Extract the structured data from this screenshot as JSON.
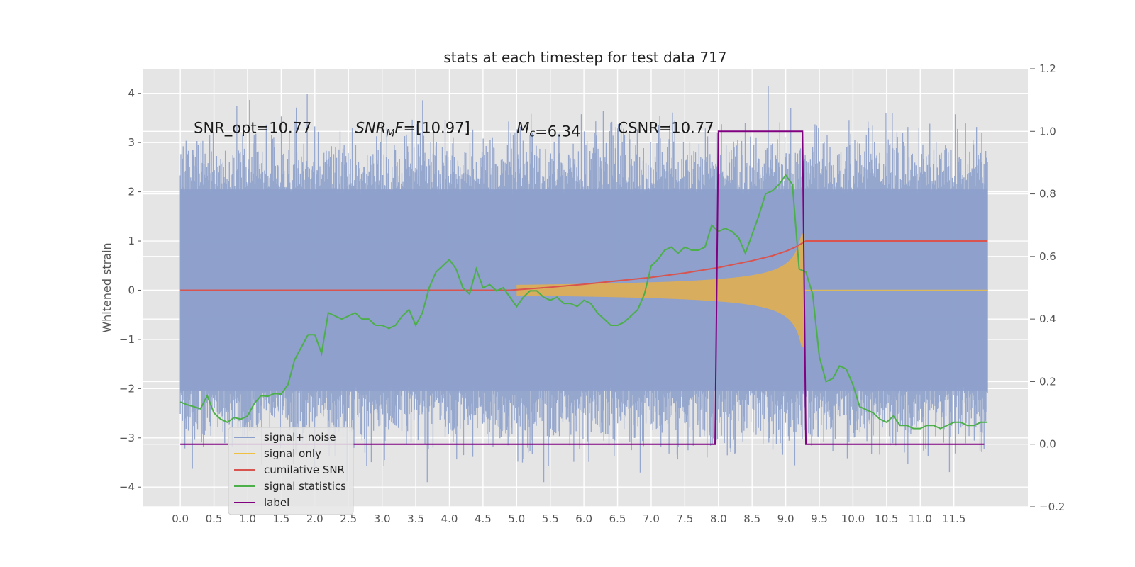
{
  "chart_data": {
    "type": "line",
    "title": "stats at each timestep for test data 717",
    "ylabel": "Whitened strain",
    "xlabel": "",
    "xlim": [
      -0.55,
      12.6
    ],
    "ylim": [
      -4.4,
      4.5
    ],
    "y2lim": [
      -0.2,
      1.2
    ],
    "grid": true,
    "legend_position": "lower-left",
    "x_ticks": [
      "0.0",
      "0.5",
      "1.0",
      "1.5",
      "2.0",
      "2.5",
      "3.0",
      "3.5",
      "4.0",
      "4.5",
      "5.0",
      "5.5",
      "6.0",
      "6.5",
      "7.0",
      "7.5",
      "8.0",
      "8.5",
      "9.0",
      "9.5",
      "10.0",
      "10.5",
      "11.0",
      "11.5"
    ],
    "y_ticks": [
      "−4",
      "−3",
      "−2",
      "−1",
      "0",
      "1",
      "2",
      "3",
      "4"
    ],
    "y2_ticks": [
      "−0.2",
      "0.0",
      "0.2",
      "0.4",
      "0.6",
      "0.8",
      "1.0",
      "1.2"
    ],
    "annotations": [
      {
        "text": "SNR_opt=10.77",
        "x": 0.2,
        "y": 3.3
      },
      {
        "text": "SNR_MF=[10.97]",
        "x": 2.6,
        "y": 3.3
      },
      {
        "text": "M_c=6.34",
        "x": 5.0,
        "y": 3.3
      },
      {
        "text": "CSNR=10.77",
        "x": 6.5,
        "y": 3.3
      }
    ],
    "series": [
      {
        "name": "signal+ noise",
        "color": "#8da0cb",
        "axis": "left",
        "kind": "noise",
        "x_start": 0.0,
        "x_end": 12.0,
        "envelope": 2.3
      },
      {
        "name": "signal only",
        "color": "#f0c040",
        "axis": "left",
        "kind": "chirp",
        "x_start": 5.0,
        "x_end": 9.28
      },
      {
        "name": "cumilative SNR",
        "color": "#d9534f",
        "axis": "left",
        "x": [
          0.0,
          4.9,
          5.5,
          6.0,
          6.5,
          7.0,
          7.5,
          8.0,
          8.5,
          8.8,
          9.0,
          9.15,
          9.3,
          12.0
        ],
        "values": [
          0.0,
          0.0,
          0.06,
          0.12,
          0.19,
          0.26,
          0.35,
          0.46,
          0.6,
          0.7,
          0.79,
          0.88,
          1.0,
          1.0
        ]
      },
      {
        "name": "signal statistics",
        "color": "#4daf4a",
        "axis": "right",
        "x": [
          0.0,
          0.1,
          0.2,
          0.3,
          0.4,
          0.5,
          0.6,
          0.7,
          0.8,
          0.9,
          1.0,
          1.1,
          1.2,
          1.3,
          1.4,
          1.5,
          1.6,
          1.7,
          1.8,
          1.9,
          2.0,
          2.1,
          2.2,
          2.3,
          2.4,
          2.5,
          2.6,
          2.7,
          2.8,
          2.9,
          3.0,
          3.1,
          3.2,
          3.3,
          3.4,
          3.5,
          3.6,
          3.7,
          3.8,
          3.9,
          4.0,
          4.1,
          4.2,
          4.3,
          4.4,
          4.5,
          4.6,
          4.7,
          4.8,
          4.9,
          5.0,
          5.1,
          5.2,
          5.3,
          5.4,
          5.5,
          5.6,
          5.7,
          5.8,
          5.9,
          6.0,
          6.1,
          6.2,
          6.3,
          6.4,
          6.5,
          6.6,
          6.7,
          6.8,
          6.9,
          7.0,
          7.1,
          7.2,
          7.3,
          7.4,
          7.5,
          7.6,
          7.7,
          7.8,
          7.9,
          8.0,
          8.1,
          8.2,
          8.3,
          8.4,
          8.5,
          8.6,
          8.7,
          8.8,
          8.9,
          9.0,
          9.1,
          9.2,
          9.3,
          9.4,
          9.5,
          9.6,
          9.7,
          9.8,
          9.9,
          10.0,
          10.1,
          10.2,
          10.3,
          10.4,
          10.5,
          10.6,
          10.7,
          10.8,
          10.9,
          11.0,
          11.1,
          11.2,
          11.3,
          11.4,
          11.5,
          11.6,
          11.7,
          11.8,
          11.9,
          12.0
        ],
        "values": [
          0.135,
          0.126,
          0.12,
          0.113,
          0.155,
          0.1,
          0.08,
          0.07,
          0.085,
          0.08,
          0.09,
          0.13,
          0.155,
          0.153,
          0.162,
          0.16,
          0.19,
          0.27,
          0.31,
          0.35,
          0.35,
          0.29,
          0.42,
          0.41,
          0.4,
          0.41,
          0.42,
          0.4,
          0.4,
          0.38,
          0.38,
          0.37,
          0.38,
          0.41,
          0.43,
          0.38,
          0.42,
          0.5,
          0.55,
          0.57,
          0.59,
          0.56,
          0.5,
          0.48,
          0.56,
          0.5,
          0.51,
          0.49,
          0.5,
          0.47,
          0.44,
          0.47,
          0.49,
          0.49,
          0.47,
          0.46,
          0.47,
          0.45,
          0.45,
          0.44,
          0.46,
          0.45,
          0.42,
          0.4,
          0.38,
          0.38,
          0.39,
          0.41,
          0.43,
          0.48,
          0.57,
          0.59,
          0.62,
          0.63,
          0.61,
          0.63,
          0.62,
          0.62,
          0.63,
          0.7,
          0.68,
          0.69,
          0.68,
          0.66,
          0.61,
          0.67,
          0.73,
          0.8,
          0.81,
          0.83,
          0.86,
          0.83,
          0.56,
          0.55,
          0.48,
          0.28,
          0.2,
          0.21,
          0.25,
          0.24,
          0.19,
          0.12,
          0.11,
          0.1,
          0.08,
          0.07,
          0.09,
          0.06,
          0.06,
          0.05,
          0.05,
          0.06,
          0.06,
          0.05,
          0.06,
          0.07,
          0.07,
          0.06,
          0.06,
          0.07,
          0.07
        ]
      },
      {
        "name": "label",
        "color": "#800080",
        "axis": "right",
        "x": [
          0.0,
          7.95,
          8.0,
          9.25,
          9.3,
          11.95
        ],
        "values": [
          0.0,
          0.0,
          1.0,
          1.0,
          0.0,
          0.0
        ]
      }
    ]
  }
}
